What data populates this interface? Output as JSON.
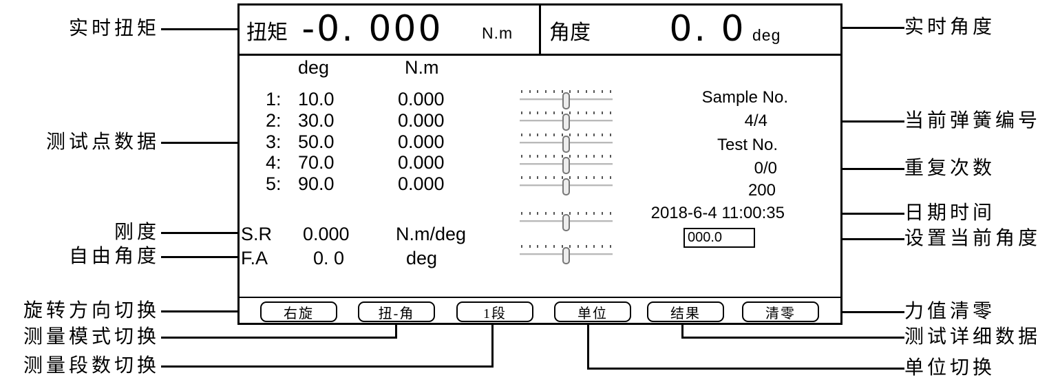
{
  "screen": {
    "torque": {
      "label": "扭矩",
      "value": "-0. 000",
      "unit": "N.m"
    },
    "angle": {
      "label": "角度",
      "value": "0. 0",
      "unit": "deg"
    },
    "table": {
      "headers": {
        "deg": "deg",
        "nm": "N.m"
      },
      "rows": [
        {
          "index": "1:",
          "deg": "10.0",
          "nm": "0.000"
        },
        {
          "index": "2:",
          "deg": "30.0",
          "nm": "0.000"
        },
        {
          "index": "3:",
          "deg": "50.0",
          "nm": "0.000"
        },
        {
          "index": "4:",
          "deg": "70.0",
          "nm": "0.000"
        },
        {
          "index": "5:",
          "deg": "90.0",
          "nm": "0.000"
        }
      ]
    },
    "stiffness": {
      "label": "S.R",
      "value": "0.000",
      "unit": "N.m/deg"
    },
    "free_angle": {
      "label": "F.A",
      "value": "0. 0",
      "unit": "deg"
    },
    "info": {
      "sample_label": "Sample No.",
      "sample_value": "4/4",
      "test_label": "Test No.",
      "test_value": "0/0",
      "count": "200",
      "datetime": "2018-6-4 11:00:35",
      "angle_input": "000.0"
    },
    "buttons": [
      "右旋",
      "扭-角",
      "1段",
      "单位",
      "结果",
      "清零"
    ]
  },
  "annotations": {
    "left": [
      "实时扭矩",
      "测试点数据",
      "刚度",
      "自由角度",
      "旋转方向切换",
      "测量模式切换",
      "测量段数切换"
    ],
    "right": [
      "实时角度",
      "当前弹簧编号",
      "重复次数",
      "日期时间",
      "设置当前角度",
      "力值清零",
      "测试详细数据",
      "单位切换"
    ]
  },
  "colors": {
    "foreground": "#000000",
    "background": "#ffffff",
    "slider_track": "#b9b9b9",
    "slider_thumb": "#ededed"
  }
}
